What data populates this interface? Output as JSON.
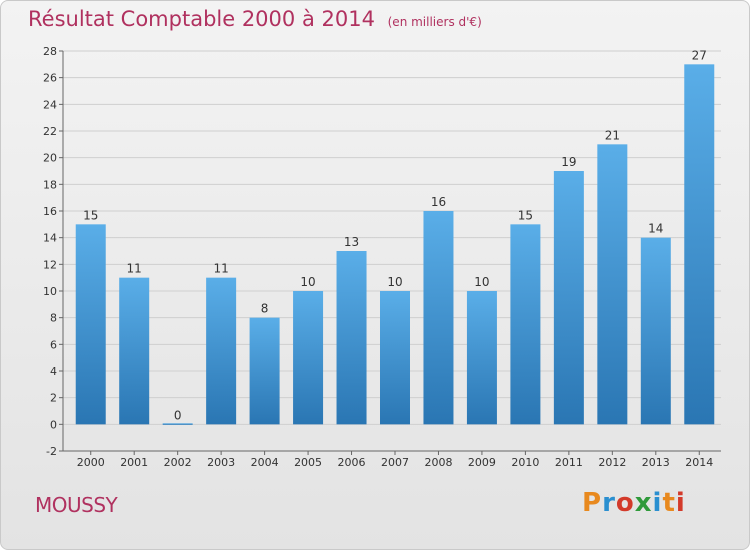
{
  "header": {
    "title": "Résultat Comptable 2000 à 2014",
    "subtitle": "(en milliers d'€)"
  },
  "footer": {
    "place": "MOUSSY",
    "logo_text": "Proxiti",
    "logo_colors": [
      "#e8891e",
      "#2a8fd0",
      "#d33a2a",
      "#2f9a3a",
      "#2a8fd0",
      "#e8891e",
      "#d33a2a"
    ]
  },
  "chart_data": {
    "type": "bar",
    "categories": [
      "2000",
      "2001",
      "2002",
      "2003",
      "2004",
      "2005",
      "2006",
      "2007",
      "2008",
      "2009",
      "2010",
      "2011",
      "2012",
      "2013",
      "2014"
    ],
    "values": [
      15,
      11,
      0,
      11,
      8,
      10,
      13,
      10,
      16,
      10,
      15,
      19,
      21,
      14,
      27
    ],
    "title": "Résultat Comptable 2000 à 2014",
    "subtitle": "(en milliers d'€)",
    "ylim": [
      -2,
      28
    ],
    "yticks": [
      -2,
      0,
      2,
      4,
      6,
      8,
      10,
      12,
      14,
      16,
      18,
      20,
      22,
      24,
      26,
      28
    ],
    "grid": true,
    "bar_color_top": "#5aaee8",
    "bar_color_bottom": "#2a76b3"
  }
}
